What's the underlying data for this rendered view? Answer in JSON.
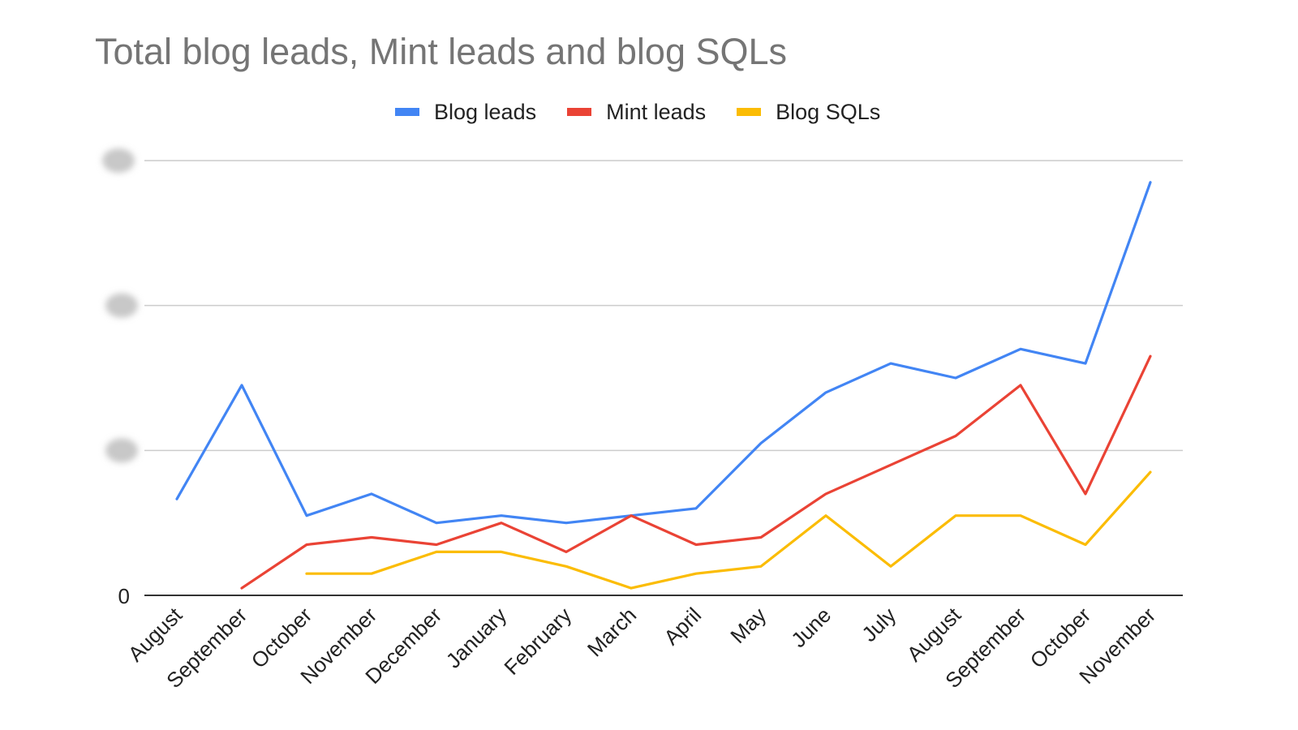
{
  "chart_data": {
    "type": "line",
    "title": "Total blog leads, Mint leads and blog SQLs",
    "xlabel": "",
    "ylabel": "",
    "categories": [
      "August",
      "September",
      "October",
      "November",
      "December",
      "January",
      "February",
      "March",
      "April",
      "May",
      "June",
      "July",
      "August",
      "September",
      "October",
      "November"
    ],
    "y_tick_labels": [
      "0"
    ],
    "ylim": [
      0,
      60
    ],
    "grid": true,
    "legend_position": "top",
    "series": [
      {
        "name": "Blog leads",
        "color": "#4285F4",
        "values": [
          13.3,
          29.0,
          11.0,
          14.0,
          10.0,
          11.0,
          10.0,
          11.0,
          12.0,
          21.0,
          28.0,
          32.0,
          30.0,
          34.0,
          32.0,
          57.0
        ]
      },
      {
        "name": "Mint leads",
        "color": "#EA4335",
        "values": [
          null,
          1.0,
          7.0,
          8.0,
          7.0,
          10.0,
          6.0,
          11.0,
          7.0,
          8.0,
          14.0,
          18.0,
          22.0,
          29.0,
          14.0,
          33.0
        ]
      },
      {
        "name": "Blog SQLs",
        "color": "#FBBC04",
        "values": [
          null,
          null,
          3.0,
          3.0,
          6.0,
          6.0,
          4.0,
          1.0,
          3.0,
          4.0,
          11.0,
          4.0,
          11.0,
          11.0,
          7.0,
          17.0
        ]
      }
    ]
  }
}
